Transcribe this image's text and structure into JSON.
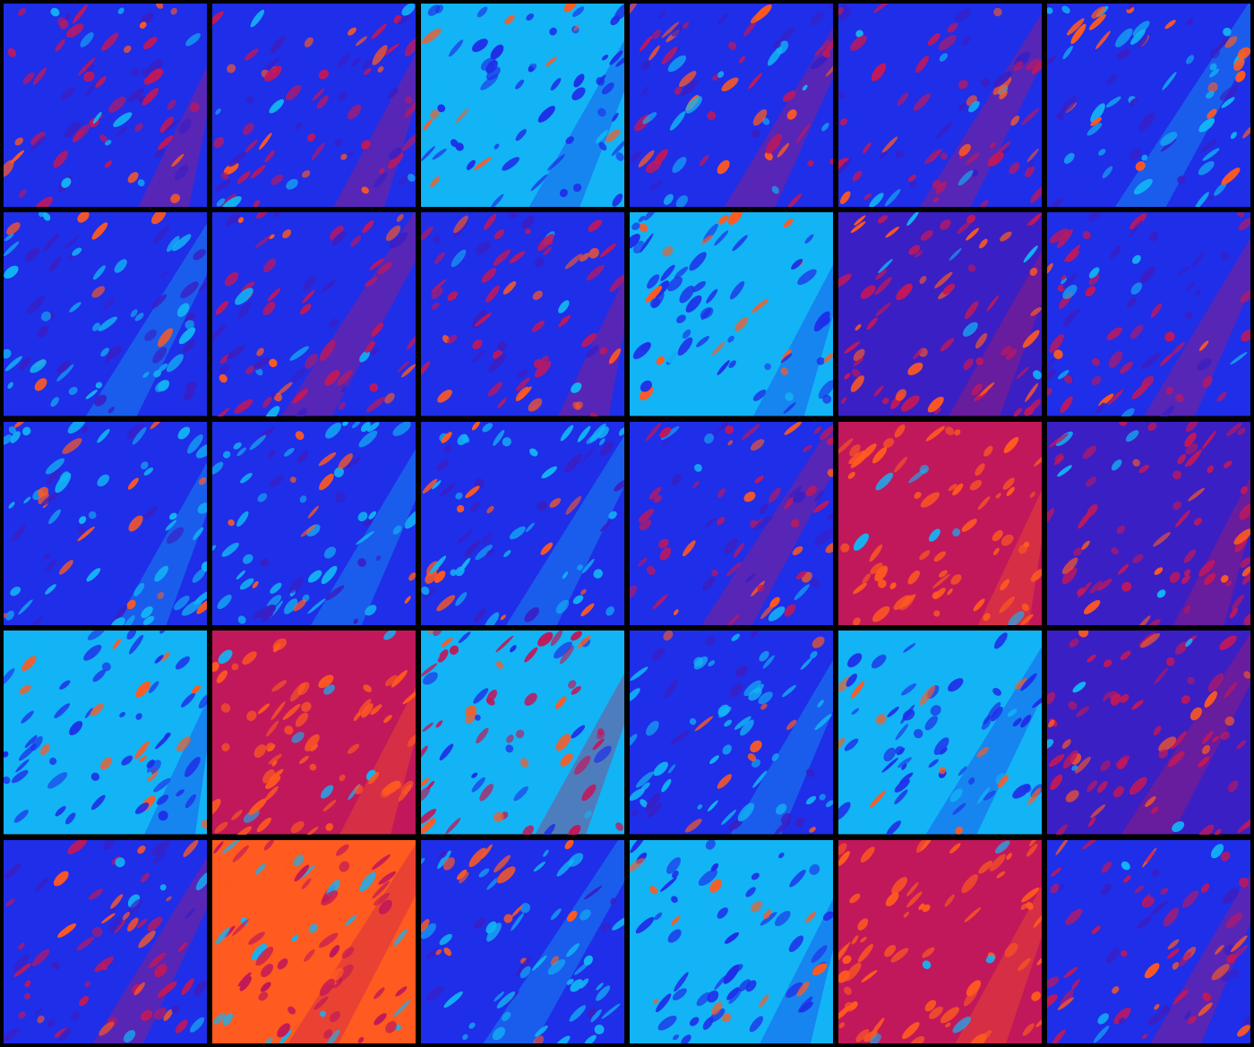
{
  "grid": {
    "rows": 5,
    "cols": 6
  },
  "palette": {
    "background": "#000000",
    "cyan": "#12b4f5",
    "blue": "#1f2ee8",
    "violet": "#3a1fc4",
    "crimson": "#c0185a",
    "orange": "#ff5a1f"
  },
  "tiles": [
    {
      "dominant": "blue",
      "accent": "crimson",
      "seed": 11
    },
    {
      "dominant": "blue",
      "accent": "crimson",
      "seed": 12
    },
    {
      "dominant": "cyan",
      "accent": "blue",
      "seed": 13
    },
    {
      "dominant": "blue",
      "accent": "crimson",
      "seed": 14
    },
    {
      "dominant": "blue",
      "accent": "crimson",
      "seed": 15
    },
    {
      "dominant": "blue",
      "accent": "cyan",
      "seed": 16
    },
    {
      "dominant": "blue",
      "accent": "cyan",
      "seed": 21
    },
    {
      "dominant": "blue",
      "accent": "crimson",
      "seed": 22
    },
    {
      "dominant": "blue",
      "accent": "crimson",
      "seed": 23
    },
    {
      "dominant": "cyan",
      "accent": "blue",
      "seed": 24
    },
    {
      "dominant": "violet",
      "accent": "crimson",
      "seed": 25
    },
    {
      "dominant": "blue",
      "accent": "crimson",
      "seed": 26
    },
    {
      "dominant": "blue",
      "accent": "cyan",
      "seed": 31
    },
    {
      "dominant": "blue",
      "accent": "cyan",
      "seed": 32
    },
    {
      "dominant": "blue",
      "accent": "cyan",
      "seed": 33
    },
    {
      "dominant": "blue",
      "accent": "crimson",
      "seed": 34
    },
    {
      "dominant": "crimson",
      "accent": "orange",
      "seed": 35
    },
    {
      "dominant": "violet",
      "accent": "crimson",
      "seed": 36
    },
    {
      "dominant": "cyan",
      "accent": "blue",
      "seed": 41
    },
    {
      "dominant": "crimson",
      "accent": "orange",
      "seed": 42
    },
    {
      "dominant": "cyan",
      "accent": "crimson",
      "seed": 43
    },
    {
      "dominant": "blue",
      "accent": "cyan",
      "seed": 44
    },
    {
      "dominant": "cyan",
      "accent": "blue",
      "seed": 45
    },
    {
      "dominant": "violet",
      "accent": "crimson",
      "seed": 46
    },
    {
      "dominant": "blue",
      "accent": "crimson",
      "seed": 51
    },
    {
      "dominant": "orange",
      "accent": "crimson",
      "seed": 52
    },
    {
      "dominant": "blue",
      "accent": "cyan",
      "seed": 53
    },
    {
      "dominant": "cyan",
      "accent": "blue",
      "seed": 54
    },
    {
      "dominant": "crimson",
      "accent": "orange",
      "seed": 55
    },
    {
      "dominant": "blue",
      "accent": "crimson",
      "seed": 56
    }
  ]
}
